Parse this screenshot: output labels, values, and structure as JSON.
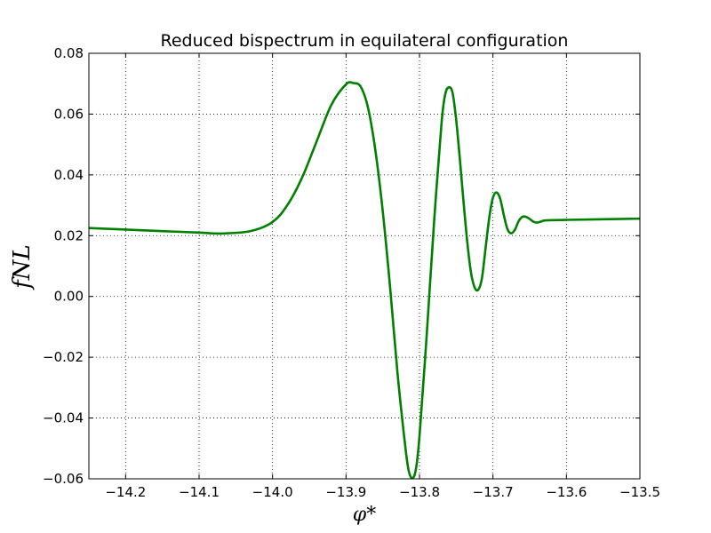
{
  "chart_data": {
    "type": "line",
    "title": "Reduced bispectrum in equilateral configuration",
    "xlabel": "φ*",
    "ylabel": "fNL",
    "xlim": [
      -14.25,
      -13.5
    ],
    "ylim": [
      -0.06,
      0.08
    ],
    "grid": true,
    "x_ticks": [
      "−14.2",
      "−14.1",
      "−14.0",
      "−13.9",
      "−13.8",
      "−13.7",
      "−13.6",
      "−13.5"
    ],
    "y_ticks": [
      "−0.06",
      "−0.04",
      "−0.02",
      "0.00",
      "0.02",
      "0.04",
      "0.06",
      "0.08"
    ],
    "series": [
      {
        "color": "#008000",
        "x": [
          -14.25,
          -14.2,
          -14.15,
          -14.1,
          -14.07,
          -14.03,
          -14.0,
          -13.98,
          -13.96,
          -13.94,
          -13.92,
          -13.9,
          -13.89,
          -13.88,
          -13.87,
          -13.86,
          -13.85,
          -13.84,
          -13.83,
          -13.82,
          -13.815,
          -13.81,
          -13.805,
          -13.8,
          -13.79,
          -13.78,
          -13.77,
          -13.765,
          -13.76,
          -13.755,
          -13.75,
          -13.745,
          -13.74,
          -13.735,
          -13.73,
          -13.725,
          -13.72,
          -13.715,
          -13.71,
          -13.705,
          -13.7,
          -13.695,
          -13.69,
          -13.685,
          -13.68,
          -13.675,
          -13.67,
          -13.665,
          -13.66,
          -13.655,
          -13.65,
          -13.645,
          -13.64,
          -13.635,
          -13.63,
          -13.62,
          -13.6,
          -13.55,
          -13.5
        ],
        "y": [
          0.0225,
          0.022,
          0.0215,
          0.021,
          0.0207,
          0.0215,
          0.0245,
          0.03,
          0.039,
          0.051,
          0.063,
          0.0698,
          0.0702,
          0.069,
          0.062,
          0.048,
          0.028,
          0.003,
          -0.025,
          -0.048,
          -0.057,
          -0.0598,
          -0.057,
          -0.046,
          -0.012,
          0.025,
          0.057,
          0.0665,
          0.0688,
          0.067,
          0.058,
          0.045,
          0.031,
          0.018,
          0.008,
          0.003,
          0.0022,
          0.006,
          0.016,
          0.026,
          0.0325,
          0.0342,
          0.032,
          0.0265,
          0.022,
          0.0208,
          0.022,
          0.0248,
          0.0262,
          0.0262,
          0.0255,
          0.0246,
          0.0243,
          0.0246,
          0.025,
          0.0251,
          0.0252,
          0.0254,
          0.0256
        ]
      }
    ]
  }
}
